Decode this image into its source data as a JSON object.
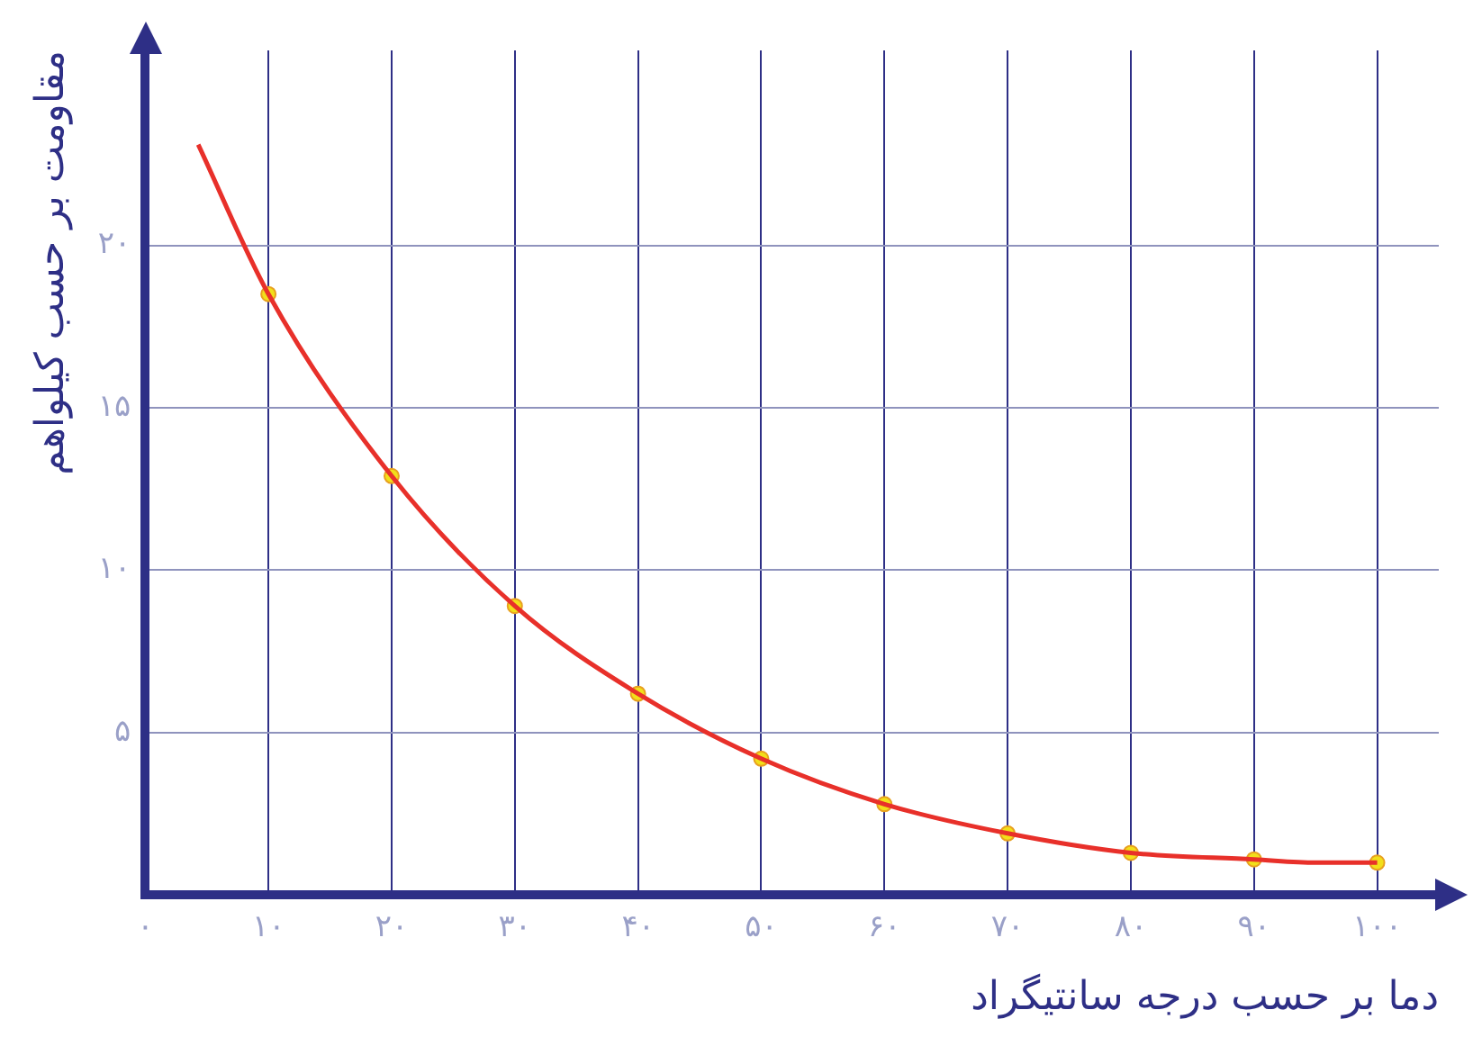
{
  "chart_data": {
    "type": "line",
    "xlabel": "دما بر حسب درجه سانتیگراد",
    "ylabel": "مقاومت بر حسب کیلواهم",
    "series": [
      {
        "type": "line",
        "color": "#e8302a",
        "marker": "none",
        "x": [
          4.3,
          10,
          20,
          30,
          40,
          50,
          60,
          70,
          80,
          90,
          95,
          100
        ],
        "values": [
          23.1,
          18.5,
          12.9,
          8.9,
          6.2,
          4.2,
          2.8,
          1.9,
          1.3,
          1.1,
          1.0,
          1.0
        ]
      },
      {
        "type": "scatter",
        "color": "#f2df1a",
        "marker": "circle",
        "x": [
          10,
          20,
          30,
          40,
          50,
          60,
          70,
          80,
          90,
          100
        ],
        "values": [
          18.5,
          12.9,
          8.9,
          6.2,
          4.2,
          2.8,
          1.9,
          1.3,
          1.1,
          1.0
        ]
      }
    ],
    "xlim": [
      0,
      105
    ],
    "ylim": [
      0,
      26
    ],
    "xticks": [
      {
        "value": 0,
        "label": "۰"
      },
      {
        "value": 10,
        "label": "۱۰"
      },
      {
        "value": 20,
        "label": "۲۰"
      },
      {
        "value": 30,
        "label": "۳۰"
      },
      {
        "value": 40,
        "label": "۴۰"
      },
      {
        "value": 50,
        "label": "۵۰"
      },
      {
        "value": 60,
        "label": "۶۰"
      },
      {
        "value": 70,
        "label": "۷۰"
      },
      {
        "value": 80,
        "label": "۸۰"
      },
      {
        "value": 90,
        "label": "۹۰"
      },
      {
        "value": 100,
        "label": "۱۰۰"
      }
    ],
    "yticks": [
      {
        "value": 5,
        "label": "۵"
      },
      {
        "value": 10,
        "label": "۱۰"
      },
      {
        "value": 15,
        "label": "۱۵"
      },
      {
        "value": 20,
        "label": "۲۰"
      }
    ],
    "grid": true,
    "legend": false
  }
}
